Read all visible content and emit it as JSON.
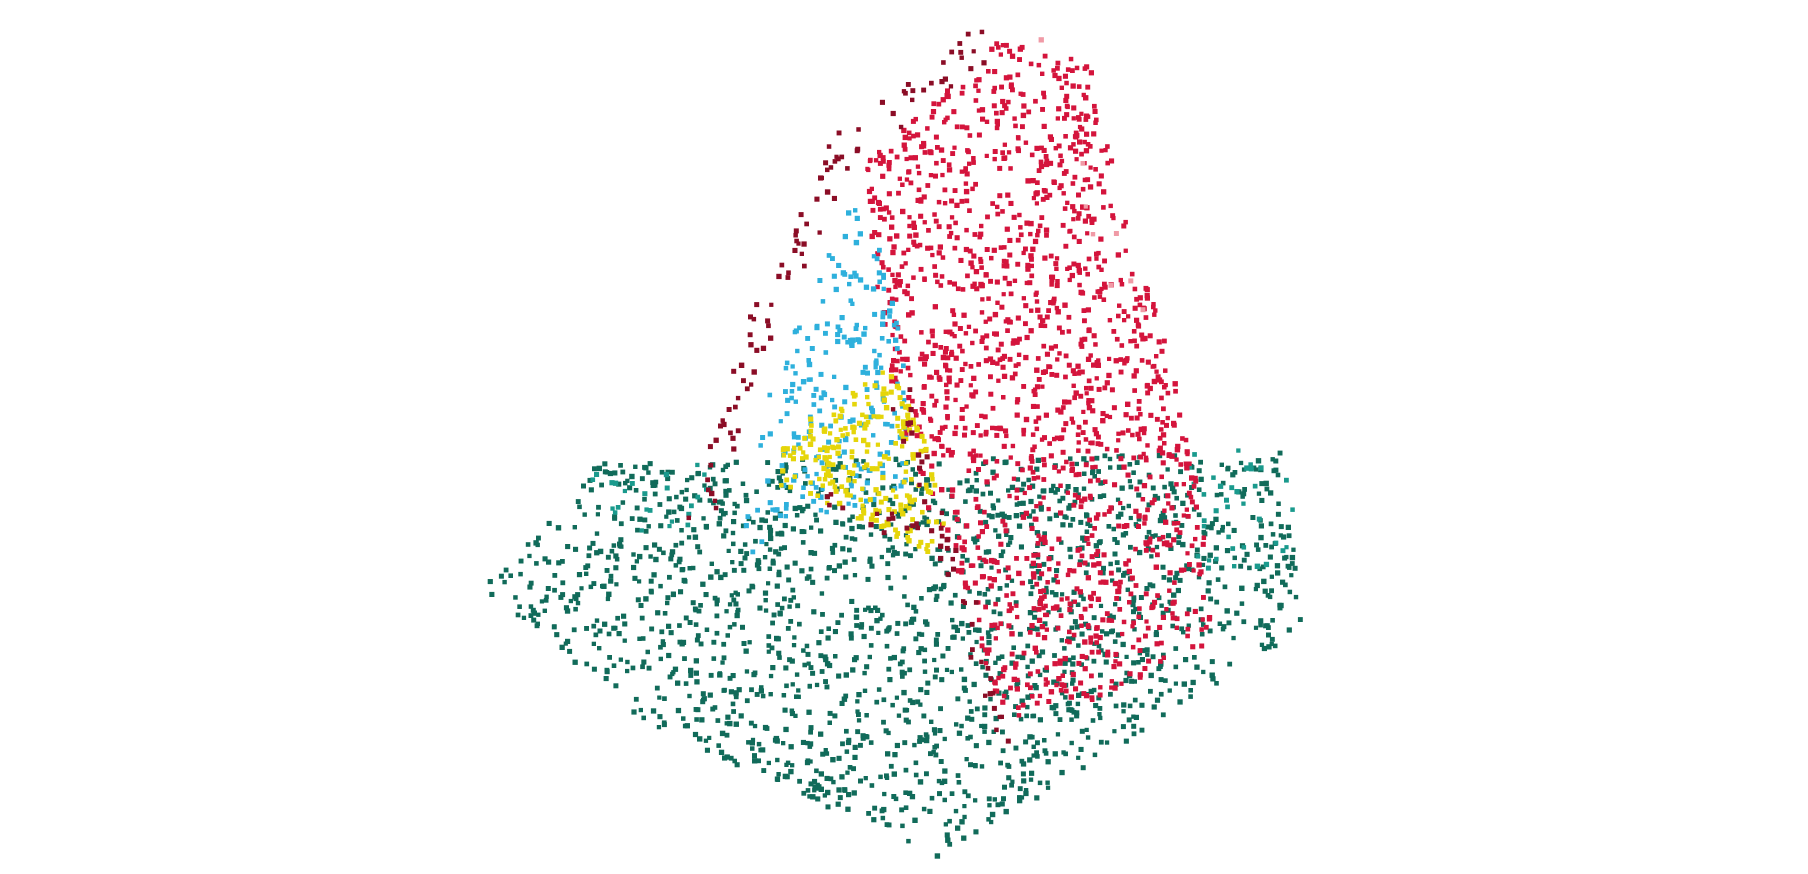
{
  "chart_data": {
    "type": "scatter",
    "projection": "3d",
    "axes_visible": false,
    "grid": false,
    "legend": "none",
    "title": "",
    "xlabel": "",
    "ylabel": "",
    "zlabel": "",
    "xlim": [
      -1,
      1
    ],
    "ylim": [
      -1,
      1
    ],
    "zlim": [
      0,
      1
    ],
    "series": [
      {
        "color": "#116b5a",
        "role": "base plane",
        "count": 1800,
        "points_sample": [
          [
            -0.8,
            -0.2,
            0.0
          ],
          [
            -0.5,
            0.6,
            0.0
          ],
          [
            0.1,
            -0.9,
            0.0
          ],
          [
            0.7,
            0.3,
            0.0
          ],
          [
            0.9,
            -0.4,
            0.0
          ],
          [
            -0.2,
            0.1,
            0.0
          ]
        ]
      },
      {
        "color": "#d4143c",
        "role": "main cone face",
        "count": 1500,
        "points_sample": [
          [
            0.2,
            0.1,
            0.9
          ],
          [
            0.4,
            -0.2,
            0.6
          ],
          [
            0.5,
            0.2,
            0.4
          ],
          [
            0.3,
            -0.1,
            0.75
          ],
          [
            0.6,
            0.0,
            0.2
          ]
        ]
      },
      {
        "color": "#8b0d26",
        "role": "cone edge",
        "count": 150,
        "points_sample": [
          [
            -0.15,
            0.1,
            0.7
          ],
          [
            -0.25,
            0.2,
            0.4
          ],
          [
            0.05,
            -0.3,
            0.2
          ]
        ]
      },
      {
        "color": "#2eb0dc",
        "role": "inner wedge",
        "count": 230,
        "points_sample": [
          [
            -0.1,
            0.05,
            0.6
          ],
          [
            -0.2,
            0.1,
            0.45
          ],
          [
            -0.3,
            0.15,
            0.25
          ]
        ]
      },
      {
        "color": "#e5d50a",
        "role": "inner core",
        "count": 230,
        "points_sample": [
          [
            -0.05,
            0.0,
            0.35
          ],
          [
            0.0,
            0.1,
            0.3
          ],
          [
            -0.1,
            0.05,
            0.2
          ]
        ]
      },
      {
        "color": "#f09aa6",
        "role": "outlier halo",
        "count": 25,
        "points_sample": [
          [
            0.45,
            0.3,
            0.55
          ],
          [
            0.3,
            0.4,
            0.95
          ]
        ]
      },
      {
        "color": "#1a9a8d",
        "role": "base plane highlight",
        "count": 60,
        "points_sample": [
          [
            0.8,
            0.4,
            0.0
          ],
          [
            0.6,
            0.5,
            0.0
          ]
        ]
      }
    ]
  }
}
